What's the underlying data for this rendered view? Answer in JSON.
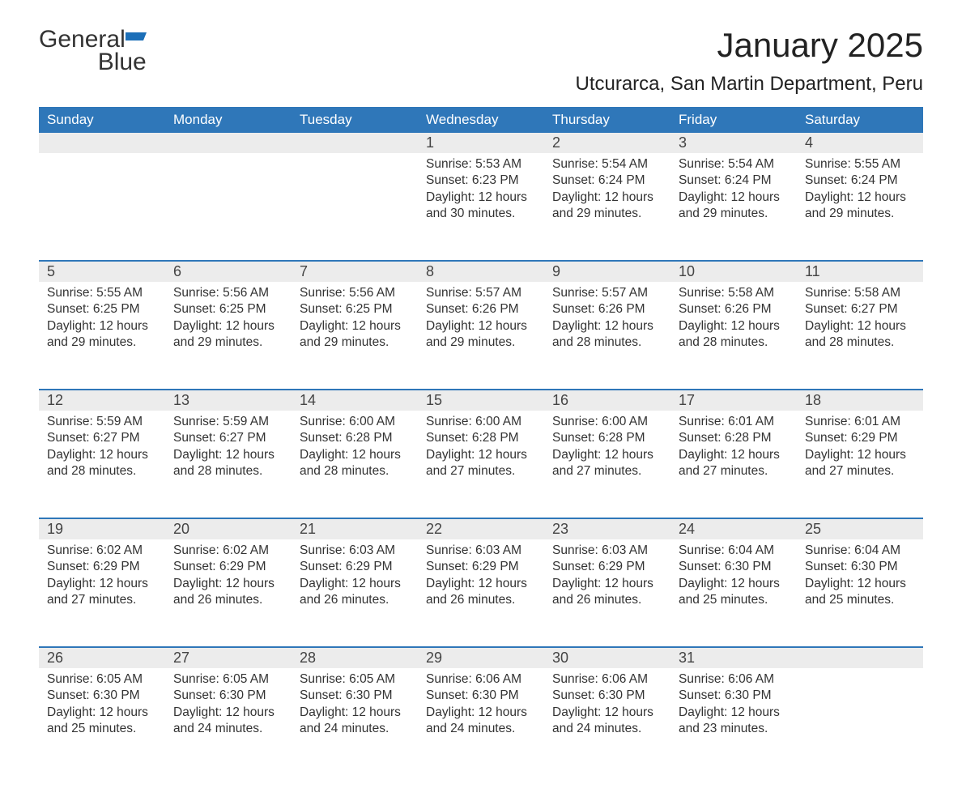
{
  "brand": {
    "name_part1": "General",
    "name_part2": "Blue",
    "text_color": "#333333",
    "accent_color": "#1c6fb8"
  },
  "header": {
    "month_title": "January 2025",
    "location": "Utcurarca, San Martin Department, Peru"
  },
  "calendar": {
    "type": "table",
    "header_bg": "#2f77b9",
    "header_text_color": "#ffffff",
    "daynum_bg": "#ececec",
    "week_border_color": "#2f77b9",
    "background_color": "#ffffff",
    "body_text_color": "#333333",
    "header_fontsize": 17,
    "daynum_fontsize": 18,
    "body_fontsize": 15.5,
    "weekdays": [
      "Sunday",
      "Monday",
      "Tuesday",
      "Wednesday",
      "Thursday",
      "Friday",
      "Saturday"
    ],
    "weeks": [
      [
        {
          "day": "",
          "sunrise": "",
          "sunset": "",
          "daylight": ""
        },
        {
          "day": "",
          "sunrise": "",
          "sunset": "",
          "daylight": ""
        },
        {
          "day": "",
          "sunrise": "",
          "sunset": "",
          "daylight": ""
        },
        {
          "day": "1",
          "sunrise": "Sunrise: 5:53 AM",
          "sunset": "Sunset: 6:23 PM",
          "daylight": "Daylight: 12 hours and 30 minutes."
        },
        {
          "day": "2",
          "sunrise": "Sunrise: 5:54 AM",
          "sunset": "Sunset: 6:24 PM",
          "daylight": "Daylight: 12 hours and 29 minutes."
        },
        {
          "day": "3",
          "sunrise": "Sunrise: 5:54 AM",
          "sunset": "Sunset: 6:24 PM",
          "daylight": "Daylight: 12 hours and 29 minutes."
        },
        {
          "day": "4",
          "sunrise": "Sunrise: 5:55 AM",
          "sunset": "Sunset: 6:24 PM",
          "daylight": "Daylight: 12 hours and 29 minutes."
        }
      ],
      [
        {
          "day": "5",
          "sunrise": "Sunrise: 5:55 AM",
          "sunset": "Sunset: 6:25 PM",
          "daylight": "Daylight: 12 hours and 29 minutes."
        },
        {
          "day": "6",
          "sunrise": "Sunrise: 5:56 AM",
          "sunset": "Sunset: 6:25 PM",
          "daylight": "Daylight: 12 hours and 29 minutes."
        },
        {
          "day": "7",
          "sunrise": "Sunrise: 5:56 AM",
          "sunset": "Sunset: 6:25 PM",
          "daylight": "Daylight: 12 hours and 29 minutes."
        },
        {
          "day": "8",
          "sunrise": "Sunrise: 5:57 AM",
          "sunset": "Sunset: 6:26 PM",
          "daylight": "Daylight: 12 hours and 29 minutes."
        },
        {
          "day": "9",
          "sunrise": "Sunrise: 5:57 AM",
          "sunset": "Sunset: 6:26 PM",
          "daylight": "Daylight: 12 hours and 28 minutes."
        },
        {
          "day": "10",
          "sunrise": "Sunrise: 5:58 AM",
          "sunset": "Sunset: 6:26 PM",
          "daylight": "Daylight: 12 hours and 28 minutes."
        },
        {
          "day": "11",
          "sunrise": "Sunrise: 5:58 AM",
          "sunset": "Sunset: 6:27 PM",
          "daylight": "Daylight: 12 hours and 28 minutes."
        }
      ],
      [
        {
          "day": "12",
          "sunrise": "Sunrise: 5:59 AM",
          "sunset": "Sunset: 6:27 PM",
          "daylight": "Daylight: 12 hours and 28 minutes."
        },
        {
          "day": "13",
          "sunrise": "Sunrise: 5:59 AM",
          "sunset": "Sunset: 6:27 PM",
          "daylight": "Daylight: 12 hours and 28 minutes."
        },
        {
          "day": "14",
          "sunrise": "Sunrise: 6:00 AM",
          "sunset": "Sunset: 6:28 PM",
          "daylight": "Daylight: 12 hours and 28 minutes."
        },
        {
          "day": "15",
          "sunrise": "Sunrise: 6:00 AM",
          "sunset": "Sunset: 6:28 PM",
          "daylight": "Daylight: 12 hours and 27 minutes."
        },
        {
          "day": "16",
          "sunrise": "Sunrise: 6:00 AM",
          "sunset": "Sunset: 6:28 PM",
          "daylight": "Daylight: 12 hours and 27 minutes."
        },
        {
          "day": "17",
          "sunrise": "Sunrise: 6:01 AM",
          "sunset": "Sunset: 6:28 PM",
          "daylight": "Daylight: 12 hours and 27 minutes."
        },
        {
          "day": "18",
          "sunrise": "Sunrise: 6:01 AM",
          "sunset": "Sunset: 6:29 PM",
          "daylight": "Daylight: 12 hours and 27 minutes."
        }
      ],
      [
        {
          "day": "19",
          "sunrise": "Sunrise: 6:02 AM",
          "sunset": "Sunset: 6:29 PM",
          "daylight": "Daylight: 12 hours and 27 minutes."
        },
        {
          "day": "20",
          "sunrise": "Sunrise: 6:02 AM",
          "sunset": "Sunset: 6:29 PM",
          "daylight": "Daylight: 12 hours and 26 minutes."
        },
        {
          "day": "21",
          "sunrise": "Sunrise: 6:03 AM",
          "sunset": "Sunset: 6:29 PM",
          "daylight": "Daylight: 12 hours and 26 minutes."
        },
        {
          "day": "22",
          "sunrise": "Sunrise: 6:03 AM",
          "sunset": "Sunset: 6:29 PM",
          "daylight": "Daylight: 12 hours and 26 minutes."
        },
        {
          "day": "23",
          "sunrise": "Sunrise: 6:03 AM",
          "sunset": "Sunset: 6:29 PM",
          "daylight": "Daylight: 12 hours and 26 minutes."
        },
        {
          "day": "24",
          "sunrise": "Sunrise: 6:04 AM",
          "sunset": "Sunset: 6:30 PM",
          "daylight": "Daylight: 12 hours and 25 minutes."
        },
        {
          "day": "25",
          "sunrise": "Sunrise: 6:04 AM",
          "sunset": "Sunset: 6:30 PM",
          "daylight": "Daylight: 12 hours and 25 minutes."
        }
      ],
      [
        {
          "day": "26",
          "sunrise": "Sunrise: 6:05 AM",
          "sunset": "Sunset: 6:30 PM",
          "daylight": "Daylight: 12 hours and 25 minutes."
        },
        {
          "day": "27",
          "sunrise": "Sunrise: 6:05 AM",
          "sunset": "Sunset: 6:30 PM",
          "daylight": "Daylight: 12 hours and 24 minutes."
        },
        {
          "day": "28",
          "sunrise": "Sunrise: 6:05 AM",
          "sunset": "Sunset: 6:30 PM",
          "daylight": "Daylight: 12 hours and 24 minutes."
        },
        {
          "day": "29",
          "sunrise": "Sunrise: 6:06 AM",
          "sunset": "Sunset: 6:30 PM",
          "daylight": "Daylight: 12 hours and 24 minutes."
        },
        {
          "day": "30",
          "sunrise": "Sunrise: 6:06 AM",
          "sunset": "Sunset: 6:30 PM",
          "daylight": "Daylight: 12 hours and 24 minutes."
        },
        {
          "day": "31",
          "sunrise": "Sunrise: 6:06 AM",
          "sunset": "Sunset: 6:30 PM",
          "daylight": "Daylight: 12 hours and 23 minutes."
        },
        {
          "day": "",
          "sunrise": "",
          "sunset": "",
          "daylight": ""
        }
      ]
    ]
  }
}
